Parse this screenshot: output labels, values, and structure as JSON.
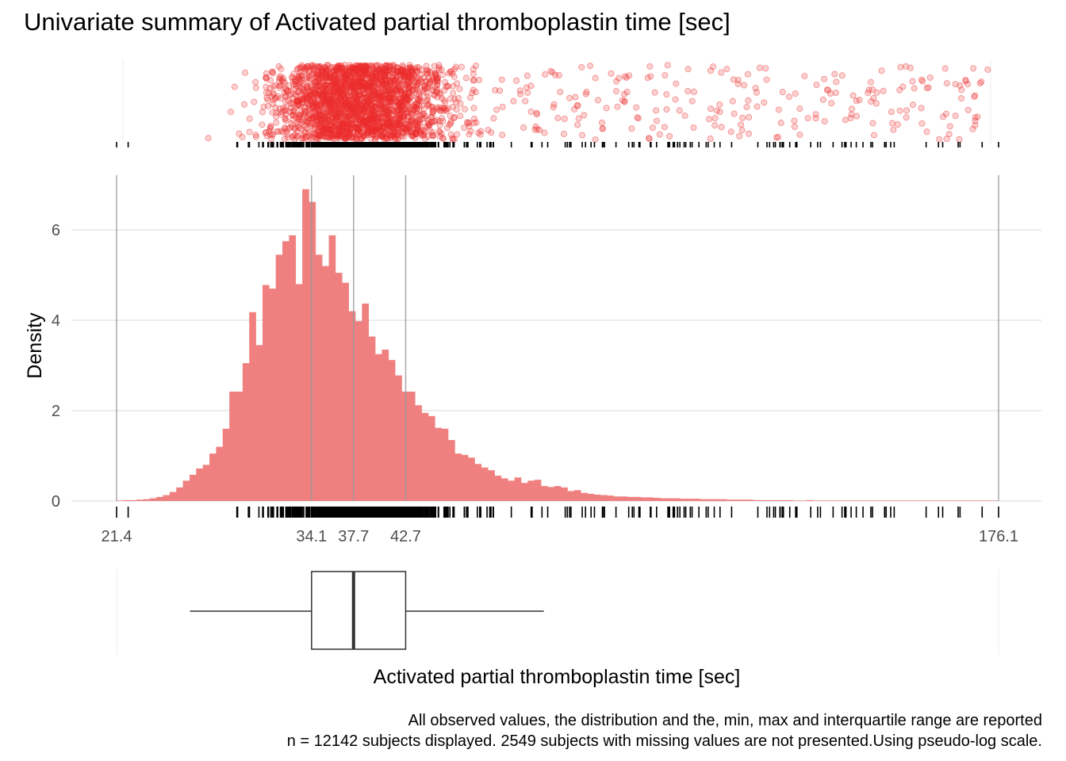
{
  "title": "Univariate summary of Activated partial thromboplastin time [sec]",
  "caption": {
    "line1": "All observed values, the distribution and the, min, max and interquartile range are reported",
    "line2": "n = 12142 subjects displayed. 2549 subjects with missing values are not presented.Using pseudo-log scale."
  },
  "colors": {
    "points": "#EE2C2C",
    "bars": "#F08080",
    "lines": "#999999",
    "grid": "#E5E5E5",
    "rug": "#000000",
    "box": "#333333"
  },
  "chart_data": {
    "type": "histogram",
    "scale": "pseudo-log",
    "xlabel": "Activated partial thromboplastin time [sec]",
    "ylabel": "Density",
    "ylim": [
      0,
      7
    ],
    "y_ticks": [
      0,
      2,
      4,
      6
    ],
    "x_range": [
      21.4,
      176.1
    ],
    "x_ticks": [
      {
        "value": 21.4,
        "label": "21.4"
      },
      {
        "value": 34.1,
        "label": "34.1"
      },
      {
        "value": 37.7,
        "label": "37.7"
      },
      {
        "value": 42.7,
        "label": "42.7"
      },
      {
        "value": 176.1,
        "label": "176.1"
      }
    ],
    "summary": {
      "min": 21.4,
      "q1": 34.1,
      "median": 37.7,
      "q3": 42.7,
      "max": 176.1,
      "whisker_low": 25.5,
      "whisker_high": 59.4
    },
    "n_displayed": 12142,
    "n_missing": 2549,
    "histogram_density": [
      0.01,
      0.02,
      0.02,
      0.03,
      0.04,
      0.06,
      0.09,
      0.13,
      0.2,
      0.3,
      0.45,
      0.58,
      0.72,
      0.8,
      1.05,
      1.2,
      1.6,
      2.42,
      2.42,
      3.05,
      4.18,
      3.45,
      4.78,
      4.7,
      5.45,
      5.75,
      5.88,
      4.8,
      6.9,
      6.62,
      5.45,
      5.2,
      5.88,
      5.05,
      4.83,
      4.2,
      3.98,
      4.37,
      3.64,
      3.25,
      3.35,
      3.12,
      2.78,
      2.42,
      2.42,
      2.12,
      1.95,
      1.88,
      1.62,
      1.6,
      1.35,
      1.05,
      1.02,
      0.96,
      0.82,
      0.74,
      0.68,
      0.56,
      0.5,
      0.45,
      0.52,
      0.4,
      0.45,
      0.47,
      0.33,
      0.31,
      0.33,
      0.3,
      0.22,
      0.24,
      0.18,
      0.16,
      0.14,
      0.13,
      0.12,
      0.1,
      0.1,
      0.09,
      0.09,
      0.08,
      0.08,
      0.07,
      0.06,
      0.06,
      0.06,
      0.05,
      0.05,
      0.05,
      0.04,
      0.04,
      0.04,
      0.04,
      0.03,
      0.03,
      0.03,
      0.03,
      0.02,
      0.02,
      0.02,
      0.02,
      0.02,
      0.02,
      0.01,
      0.01,
      0.02,
      0.01,
      0.01,
      0.01,
      0.01,
      0.01,
      0.01,
      0.01,
      0.01,
      0.01,
      0.01,
      0.01,
      0.01,
      0.01,
      0.01,
      0.01,
      0.01,
      0.01,
      0.01,
      0.01,
      0.01,
      0.01,
      0.01,
      0.01,
      0.01,
      0.01,
      0.01,
      0.01,
      0.01
    ]
  }
}
